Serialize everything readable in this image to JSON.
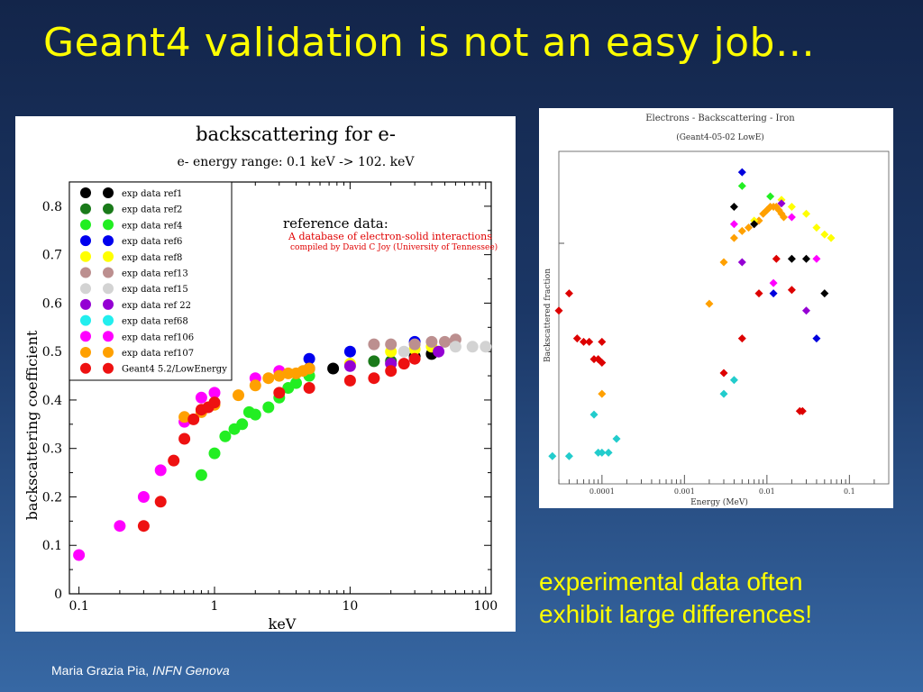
{
  "slide": {
    "title": "Geant4 validation is not an easy job…",
    "caption_line1": "experimental data often",
    "caption_line2": "exhibit large differences!",
    "footer_author": "Maria Grazia Pia,",
    "footer_affiliation": "INFN Genova",
    "colors": {
      "background": "#1b3766",
      "title": "#ffff00",
      "caption": "#ffff00",
      "footer": "#ffffff"
    }
  },
  "chart_data": [
    {
      "type": "scatter",
      "title": "backscattering for e-",
      "subtitle": "e- energy range: 0.1 keV -> 102. keV",
      "xlabel": "keV",
      "ylabel": "backscattering coefficient",
      "xscale": "log",
      "xlim": [
        0.085,
        110
      ],
      "ylim": [
        0,
        0.85
      ],
      "xticks": [
        "0.1",
        "1",
        "10",
        "100"
      ],
      "yticks": [
        "0",
        "0.1",
        "0.2",
        "0.3",
        "0.4",
        "0.5",
        "0.6",
        "0.7",
        "0.8"
      ],
      "annotation": {
        "heading": "reference data:",
        "line1": "A database of electron-solid interactions",
        "line2": "compiled by David C Joy (University of Tennessee)",
        "color": "#e00000"
      },
      "legend_position": "top-left",
      "series": [
        {
          "name": "exp data ref1",
          "color": "#000000",
          "x": [
            5,
            7.5,
            30,
            40
          ],
          "y": [
            0.465,
            0.465,
            0.49,
            0.495
          ]
        },
        {
          "name": "exp data ref2",
          "color": "#1a7a1a",
          "x": [
            15,
            20
          ],
          "y": [
            0.48,
            0.48
          ]
        },
        {
          "name": "exp data ref4",
          "color": "#22ee22",
          "x": [
            0.8,
            1,
            1.2,
            1.4,
            1.6,
            1.8,
            2,
            2.5,
            3,
            3.5,
            4,
            5
          ],
          "y": [
            0.245,
            0.29,
            0.325,
            0.34,
            0.35,
            0.375,
            0.37,
            0.385,
            0.405,
            0.425,
            0.435,
            0.45
          ]
        },
        {
          "name": "exp data ref6",
          "color": "#0000ee",
          "x": [
            5,
            10,
            30
          ],
          "y": [
            0.485,
            0.5,
            0.52
          ]
        },
        {
          "name": "exp data ref8",
          "color": "#ffff00",
          "x": [
            10,
            20,
            30,
            40
          ],
          "y": [
            0.475,
            0.5,
            0.505,
            0.51
          ]
        },
        {
          "name": "exp data ref13",
          "color": "#bc8f8f",
          "x": [
            15,
            20,
            30,
            40,
            50,
            60
          ],
          "y": [
            0.515,
            0.515,
            0.515,
            0.52,
            0.52,
            0.525
          ]
        },
        {
          "name": "exp data ref15",
          "color": "#d3d3d3",
          "x": [
            25,
            60,
            80,
            100
          ],
          "y": [
            0.5,
            0.51,
            0.51,
            0.51
          ]
        },
        {
          "name": "exp data ref 22",
          "color": "#9400d3",
          "x": [
            10,
            20,
            45
          ],
          "y": [
            0.47,
            0.475,
            0.5
          ]
        },
        {
          "name": "exp data ref68",
          "color": "#22eeee",
          "x": [],
          "y": []
        },
        {
          "name": "exp data ref106",
          "color": "#ff00ff",
          "x": [
            0.1,
            0.2,
            0.3,
            0.4,
            0.6,
            0.8,
            1,
            2,
            3
          ],
          "y": [
            0.08,
            0.14,
            0.2,
            0.255,
            0.355,
            0.405,
            0.415,
            0.445,
            0.46
          ]
        },
        {
          "name": "exp data ref107",
          "color": "#ffa000",
          "x": [
            0.6,
            0.8,
            1,
            1.5,
            2,
            2.5,
            3,
            3.5,
            4,
            4.5,
            5
          ],
          "y": [
            0.365,
            0.375,
            0.39,
            0.41,
            0.43,
            0.445,
            0.45,
            0.455,
            0.455,
            0.46,
            0.465
          ]
        },
        {
          "name": "Geant4 5.2/LowEnergy",
          "color": "#ee1111",
          "x": [
            0.3,
            0.4,
            0.5,
            0.6,
            0.7,
            0.8,
            0.9,
            1,
            3,
            5,
            10,
            15,
            20,
            25,
            30
          ],
          "y": [
            0.14,
            0.19,
            0.275,
            0.32,
            0.36,
            0.38,
            0.385,
            0.395,
            0.415,
            0.425,
            0.44,
            0.445,
            0.46,
            0.475,
            0.485
          ]
        }
      ]
    },
    {
      "type": "scatter",
      "title": "Electrons - Backscattering - Iron",
      "subtitle": "(Geant4-05-02 LowE)",
      "xlabel": "Energy (MeV)",
      "ylabel": "Backscattered fraction",
      "xscale": "log",
      "xlim": [
        3e-05,
        0.3
      ],
      "ylim": [
        0.3,
        0.78
      ],
      "xticks": [
        "0.0001",
        "0.001",
        "0.01",
        "0.1"
      ],
      "marker": "diamond",
      "series": [
        {
          "color": "#22cccc",
          "x": [
            2.5e-05,
            4e-05,
            8e-05,
            9e-05,
            0.0001,
            0.00012,
            0.00015,
            0.003,
            0.004
          ],
          "y": [
            0.34,
            0.34,
            0.4,
            0.345,
            0.345,
            0.345,
            0.365,
            0.43,
            0.45
          ]
        },
        {
          "color": "#dd0000",
          "x": [
            3e-05,
            4e-05,
            5e-05,
            6e-05,
            7e-05,
            8e-05,
            9e-05,
            0.0001,
            0.0001,
            0.003,
            0.005,
            0.008,
            0.013,
            0.02,
            0.025,
            0.027
          ],
          "y": [
            0.55,
            0.575,
            0.51,
            0.505,
            0.505,
            0.48,
            0.48,
            0.475,
            0.505,
            0.46,
            0.51,
            0.575,
            0.625,
            0.58,
            0.405,
            0.405
          ]
        },
        {
          "color": "#ffa000",
          "x": [
            0.0001,
            0.002,
            0.003,
            0.004,
            0.005,
            0.006,
            0.007,
            0.008,
            0.009,
            0.01,
            0.011,
            0.012,
            0.013,
            0.014,
            0.015,
            0.016
          ],
          "y": [
            0.43,
            0.56,
            0.62,
            0.655,
            0.665,
            0.67,
            0.675,
            0.68,
            0.69,
            0.695,
            0.7,
            0.7,
            0.7,
            0.695,
            0.69,
            0.685
          ]
        },
        {
          "color": "#ffff00",
          "x": [
            0.007,
            0.015,
            0.02,
            0.03,
            0.04,
            0.05,
            0.06
          ],
          "y": [
            0.68,
            0.71,
            0.7,
            0.69,
            0.67,
            0.66,
            0.655
          ]
        },
        {
          "color": "#22ee22",
          "x": [
            0.005,
            0.011
          ],
          "y": [
            0.73,
            0.715
          ]
        },
        {
          "color": "#0000dd",
          "x": [
            0.005,
            0.012,
            0.04
          ],
          "y": [
            0.75,
            0.575,
            0.51
          ]
        },
        {
          "color": "#000000",
          "x": [
            0.004,
            0.007,
            0.02,
            0.03,
            0.05
          ],
          "y": [
            0.7,
            0.675,
            0.625,
            0.625,
            0.575
          ]
        },
        {
          "color": "#ff00ff",
          "x": [
            0.004,
            0.012,
            0.02,
            0.04
          ],
          "y": [
            0.675,
            0.59,
            0.685,
            0.625
          ]
        },
        {
          "color": "#9400d3",
          "x": [
            0.005,
            0.015,
            0.03
          ],
          "y": [
            0.62,
            0.705,
            0.55
          ]
        }
      ]
    }
  ]
}
